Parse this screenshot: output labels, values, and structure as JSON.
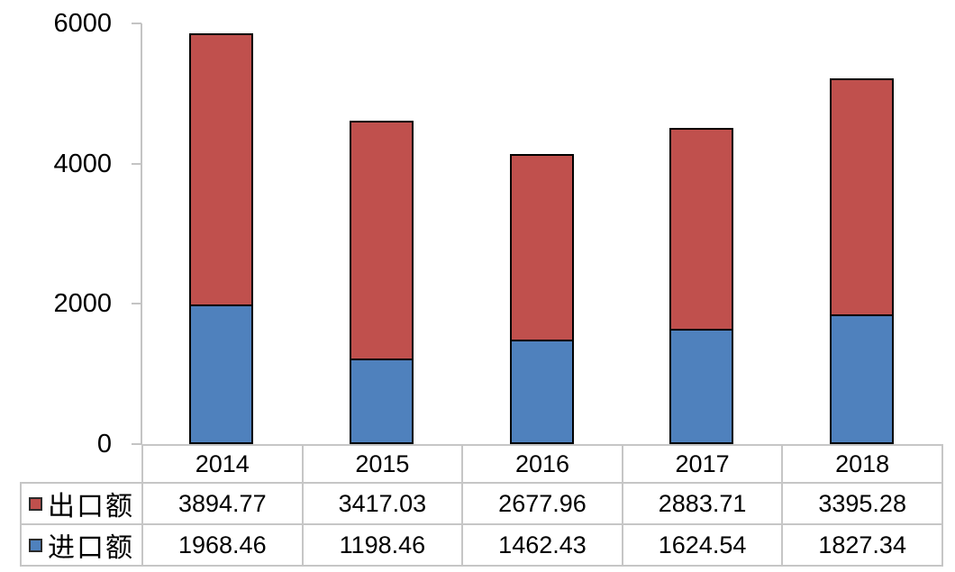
{
  "chart_data": {
    "type": "bar",
    "stacked": true,
    "title": "",
    "xlabel": "",
    "ylabel": "",
    "categories": [
      "2014",
      "2015",
      "2016",
      "2017",
      "2018"
    ],
    "series": [
      {
        "name": "出口额",
        "color": "#c0504d",
        "values": [
          3894.77,
          3417.03,
          2677.96,
          2883.71,
          3395.28
        ]
      },
      {
        "name": "进口额",
        "color": "#4f81bd",
        "values": [
          1968.46,
          1198.46,
          1462.43,
          1624.54,
          1827.34
        ]
      }
    ],
    "yticks": [
      0,
      2000,
      4000,
      6000
    ],
    "ylim": [
      0,
      6000
    ],
    "grid": false,
    "legend_position": "data-table-left",
    "bar_border_color": "#000000",
    "axis_color": "#c4c4c4",
    "table_border_color": "#c6c6c6"
  }
}
